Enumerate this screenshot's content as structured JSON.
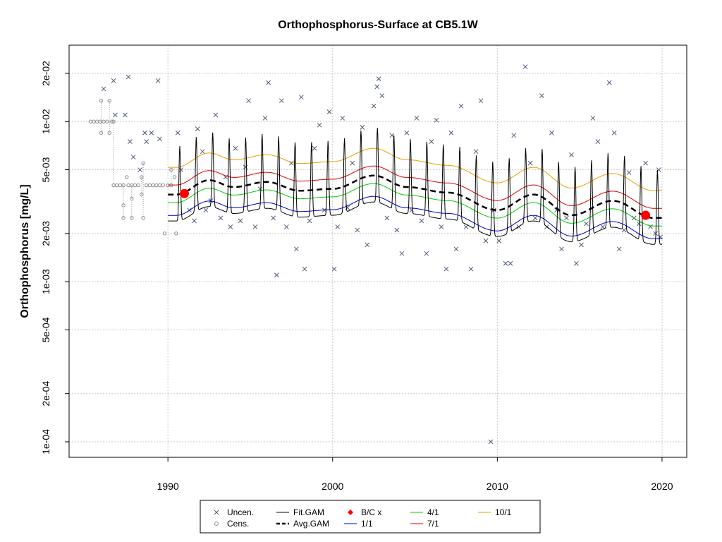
{
  "chart_data": {
    "type": "scatter",
    "title": "Orthophosphorus-Surface at CB5.1W",
    "xlabel": "",
    "ylabel": "Orthophosphorus [mg/L]",
    "x_scale": "linear",
    "y_scale": "log",
    "xlim": [
      1984.0,
      2021.5
    ],
    "ylim": [
      8e-05,
      0.03
    ],
    "x_ticks": [
      1990,
      2000,
      2010,
      2020
    ],
    "x_tick_labels": [
      "1990",
      "2000",
      "2010",
      "2020"
    ],
    "y_ticks": [
      0.0001,
      0.0002,
      0.0005,
      0.001,
      0.002,
      0.005,
      0.01,
      0.02
    ],
    "y_tick_labels": [
      "1e-04",
      "2e-04",
      "5e-04",
      "1e-03",
      "2e-03",
      "5e-03",
      "1e-02",
      "2e-02"
    ],
    "grid": true,
    "legend_position": "bottom",
    "colors": {
      "uncensored": "#4a5a7a",
      "censored": "#8c8c8c",
      "fit_gam": "#000000",
      "avg_gam": "#000000",
      "bc_points": "#ff0000",
      "d1_1": "#0000cc",
      "d4_1": "#00cc00",
      "d7_1": "#dd0000",
      "d10_1": "#e69f00",
      "grid": "#c8c8c8"
    },
    "bc_points": [
      {
        "x": 1991.0,
        "y": 0.00355
      },
      {
        "x": 2019.0,
        "y": 0.0026
      }
    ],
    "censored_points": [
      {
        "x": 1985.3,
        "y": 0.01
      },
      {
        "x": 1985.5,
        "y": 0.01
      },
      {
        "x": 1985.7,
        "y": 0.01
      },
      {
        "x": 1985.9,
        "y": 0.01
      },
      {
        "x": 1985.95,
        "y": 0.0135
      },
      {
        "x": 1985.95,
        "y": 0.0085
      },
      {
        "x": 1986.1,
        "y": 0.01
      },
      {
        "x": 1986.3,
        "y": 0.01
      },
      {
        "x": 1986.45,
        "y": 0.0135
      },
      {
        "x": 1986.45,
        "y": 0.0085
      },
      {
        "x": 1986.6,
        "y": 0.01
      },
      {
        "x": 1986.7,
        "y": 0.01
      },
      {
        "x": 1986.7,
        "y": 0.004
      },
      {
        "x": 1986.9,
        "y": 0.004
      },
      {
        "x": 1987.1,
        "y": 0.004
      },
      {
        "x": 1987.3,
        "y": 0.004
      },
      {
        "x": 1987.3,
        "y": 0.003
      },
      {
        "x": 1987.3,
        "y": 0.0025
      },
      {
        "x": 1987.5,
        "y": 0.0045
      },
      {
        "x": 1987.6,
        "y": 0.004
      },
      {
        "x": 1987.8,
        "y": 0.004
      },
      {
        "x": 1987.8,
        "y": 0.0025
      },
      {
        "x": 1987.8,
        "y": 0.0033
      },
      {
        "x": 1988.0,
        "y": 0.004
      },
      {
        "x": 1988.2,
        "y": 0.004
      },
      {
        "x": 1988.4,
        "y": 0.0045
      },
      {
        "x": 1988.4,
        "y": 0.0035
      },
      {
        "x": 1988.5,
        "y": 0.0025
      },
      {
        "x": 1988.5,
        "y": 0.0055
      },
      {
        "x": 1988.7,
        "y": 0.004
      },
      {
        "x": 1988.9,
        "y": 0.004
      },
      {
        "x": 1989.1,
        "y": 0.004
      },
      {
        "x": 1989.3,
        "y": 0.004
      },
      {
        "x": 1989.5,
        "y": 0.004
      },
      {
        "x": 1989.7,
        "y": 0.004
      },
      {
        "x": 1989.8,
        "y": 0.002
      },
      {
        "x": 1990.0,
        "y": 0.004
      },
      {
        "x": 1990.2,
        "y": 0.004
      },
      {
        "x": 1990.2,
        "y": 0.005
      },
      {
        "x": 1990.4,
        "y": 0.0045
      },
      {
        "x": 1990.5,
        "y": 0.002
      }
    ],
    "uncensored_points": [
      {
        "x": 1986.1,
        "y": 0.016
      },
      {
        "x": 1986.7,
        "y": 0.018
      },
      {
        "x": 1986.8,
        "y": 0.011
      },
      {
        "x": 1987.4,
        "y": 0.011
      },
      {
        "x": 1987.6,
        "y": 0.019
      },
      {
        "x": 1987.7,
        "y": 0.0075
      },
      {
        "x": 1987.9,
        "y": 0.006
      },
      {
        "x": 1988.3,
        "y": 0.005
      },
      {
        "x": 1988.6,
        "y": 0.0085
      },
      {
        "x": 1988.7,
        "y": 0.0075
      },
      {
        "x": 1989.0,
        "y": 0.0085
      },
      {
        "x": 1989.4,
        "y": 0.018
      },
      {
        "x": 1989.5,
        "y": 0.0078
      },
      {
        "x": 1990.6,
        "y": 0.0085
      },
      {
        "x": 1990.8,
        "y": 0.005
      },
      {
        "x": 1991.3,
        "y": 0.0028
      },
      {
        "x": 1991.6,
        "y": 0.0024
      },
      {
        "x": 1991.8,
        "y": 0.009
      },
      {
        "x": 1992.1,
        "y": 0.0065
      },
      {
        "x": 1992.3,
        "y": 0.0028
      },
      {
        "x": 1992.6,
        "y": 0.0032
      },
      {
        "x": 1992.9,
        "y": 0.011
      },
      {
        "x": 1993.2,
        "y": 0.0025
      },
      {
        "x": 1993.5,
        "y": 0.0045
      },
      {
        "x": 1993.8,
        "y": 0.0022
      },
      {
        "x": 1994.1,
        "y": 0.0068
      },
      {
        "x": 1994.4,
        "y": 0.0024
      },
      {
        "x": 1994.7,
        "y": 0.0052
      },
      {
        "x": 1994.9,
        "y": 0.0135
      },
      {
        "x": 1995.3,
        "y": 0.0022
      },
      {
        "x": 1995.6,
        "y": 0.0038
      },
      {
        "x": 1995.9,
        "y": 0.0105
      },
      {
        "x": 1996.1,
        "y": 0.0175
      },
      {
        "x": 1996.4,
        "y": 0.0025
      },
      {
        "x": 1996.6,
        "y": 0.0011
      },
      {
        "x": 1996.9,
        "y": 0.0135
      },
      {
        "x": 1997.2,
        "y": 0.0022
      },
      {
        "x": 1997.5,
        "y": 0.0055
      },
      {
        "x": 1997.8,
        "y": 0.0016
      },
      {
        "x": 1998.1,
        "y": 0.0142
      },
      {
        "x": 1998.3,
        "y": 0.0012
      },
      {
        "x": 1998.6,
        "y": 0.0024
      },
      {
        "x": 1998.9,
        "y": 0.0068
      },
      {
        "x": 1999.2,
        "y": 0.0095
      },
      {
        "x": 1999.5,
        "y": 0.0028
      },
      {
        "x": 1999.8,
        "y": 0.0115
      },
      {
        "x": 2000.1,
        "y": 0.0012
      },
      {
        "x": 2000.3,
        "y": 0.0022
      },
      {
        "x": 2000.6,
        "y": 0.0105
      },
      {
        "x": 2000.9,
        "y": 0.0029
      },
      {
        "x": 2001.2,
        "y": 0.0055
      },
      {
        "x": 2001.5,
        "y": 0.0021
      },
      {
        "x": 2001.8,
        "y": 0.0092
      },
      {
        "x": 2002.1,
        "y": 0.0017
      },
      {
        "x": 2002.5,
        "y": 0.0125
      },
      {
        "x": 2002.7,
        "y": 0.0165
      },
      {
        "x": 2002.8,
        "y": 0.0185
      },
      {
        "x": 2003.0,
        "y": 0.0145
      },
      {
        "x": 2003.3,
        "y": 0.0025
      },
      {
        "x": 2003.6,
        "y": 0.0082
      },
      {
        "x": 2003.9,
        "y": 0.0021
      },
      {
        "x": 2004.2,
        "y": 0.0015
      },
      {
        "x": 2004.5,
        "y": 0.0085
      },
      {
        "x": 2004.8,
        "y": 0.0028
      },
      {
        "x": 2005.1,
        "y": 0.0105
      },
      {
        "x": 2005.4,
        "y": 0.0024
      },
      {
        "x": 2005.7,
        "y": 0.0015
      },
      {
        "x": 2006.0,
        "y": 0.0075
      },
      {
        "x": 2006.3,
        "y": 0.0102
      },
      {
        "x": 2006.6,
        "y": 0.0022
      },
      {
        "x": 2006.9,
        "y": 0.0012
      },
      {
        "x": 2007.2,
        "y": 0.0085
      },
      {
        "x": 2007.5,
        "y": 0.0016
      },
      {
        "x": 2007.8,
        "y": 0.0125
      },
      {
        "x": 2008.1,
        "y": 0.0022
      },
      {
        "x": 2008.4,
        "y": 0.0012
      },
      {
        "x": 2008.7,
        "y": 0.0065
      },
      {
        "x": 2009.0,
        "y": 0.0135
      },
      {
        "x": 2009.3,
        "y": 0.0018
      },
      {
        "x": 2009.6,
        "y": 0.0001
      },
      {
        "x": 2009.8,
        "y": 0.0028
      },
      {
        "x": 2010.1,
        "y": 0.0018
      },
      {
        "x": 2010.5,
        "y": 0.0013
      },
      {
        "x": 2010.8,
        "y": 0.0013
      },
      {
        "x": 2011.0,
        "y": 0.0082
      },
      {
        "x": 2011.3,
        "y": 0.0022
      },
      {
        "x": 2011.7,
        "y": 0.022
      },
      {
        "x": 2012.0,
        "y": 0.0055
      },
      {
        "x": 2012.3,
        "y": 0.0025
      },
      {
        "x": 2012.7,
        "y": 0.0145
      },
      {
        "x": 2013.0,
        "y": 0.0022
      },
      {
        "x": 2013.3,
        "y": 0.0085
      },
      {
        "x": 2013.6,
        "y": 0.0028
      },
      {
        "x": 2013.9,
        "y": 0.0016
      },
      {
        "x": 2014.2,
        "y": 0.0025
      },
      {
        "x": 2014.5,
        "y": 0.0062
      },
      {
        "x": 2014.8,
        "y": 0.0013
      },
      {
        "x": 2015.1,
        "y": 0.0017
      },
      {
        "x": 2015.4,
        "y": 0.0023
      },
      {
        "x": 2015.8,
        "y": 0.0105
      },
      {
        "x": 2016.1,
        "y": 0.0075
      },
      {
        "x": 2016.4,
        "y": 0.0022
      },
      {
        "x": 2016.8,
        "y": 0.0175
      },
      {
        "x": 2017.1,
        "y": 0.0085
      },
      {
        "x": 2017.4,
        "y": 0.0016
      },
      {
        "x": 2017.7,
        "y": 0.0021
      },
      {
        "x": 2018.0,
        "y": 0.0048
      },
      {
        "x": 2018.3,
        "y": 0.0025
      },
      {
        "x": 2018.6,
        "y": 0.0023
      },
      {
        "x": 2019.0,
        "y": 0.0055
      },
      {
        "x": 2019.3,
        "y": 0.0022
      },
      {
        "x": 2019.6,
        "y": 0.002
      },
      {
        "x": 2019.8,
        "y": 0.005
      },
      {
        "x": 2019.9,
        "y": 0.0019
      }
    ],
    "curves": {
      "x_range": [
        1990.0,
        2020.0
      ],
      "avg_gam_control_points": [
        [
          1990.5,
          0.0035
        ],
        [
          1992.5,
          0.0043
        ],
        [
          1994.0,
          0.0039
        ],
        [
          1996.0,
          0.0042
        ],
        [
          1998.0,
          0.0037
        ],
        [
          2000.0,
          0.0038
        ],
        [
          2002.5,
          0.0046
        ],
        [
          2004.5,
          0.0039
        ],
        [
          2007.0,
          0.0036
        ],
        [
          2010.0,
          0.0028
        ],
        [
          2012.2,
          0.0035
        ],
        [
          2014.5,
          0.0026
        ],
        [
          2017.0,
          0.0032
        ],
        [
          2019.5,
          0.0025
        ]
      ],
      "seasonal_offsets_log10": {
        "d1_1": -0.13,
        "d4_1": -0.05,
        "d7_1": 0.06,
        "d10_1": 0.17
      },
      "fit_gam_peak_log10": 0.3,
      "fit_gam_trough_log10": -0.18
    },
    "legend": [
      {
        "label": "Uncen.",
        "marker": "x",
        "color": "#4a5a7a"
      },
      {
        "label": "Cens.",
        "marker": "circle",
        "color": "#8c8c8c"
      },
      {
        "label": "Fit.GAM",
        "line": "solid",
        "color": "#000000"
      },
      {
        "label": "Avg.GAM",
        "line": "dashed",
        "color": "#000000"
      },
      {
        "label": "B/C x",
        "marker": "diamond",
        "color": "#ff0000"
      },
      {
        "label": "1/1",
        "line": "solid",
        "color": "#0000cc"
      },
      {
        "label": "4/1",
        "line": "solid",
        "color": "#00cc00"
      },
      {
        "label": "7/1",
        "line": "solid",
        "color": "#dd0000"
      },
      {
        "label": "10/1",
        "line": "solid",
        "color": "#e69f00"
      }
    ]
  }
}
